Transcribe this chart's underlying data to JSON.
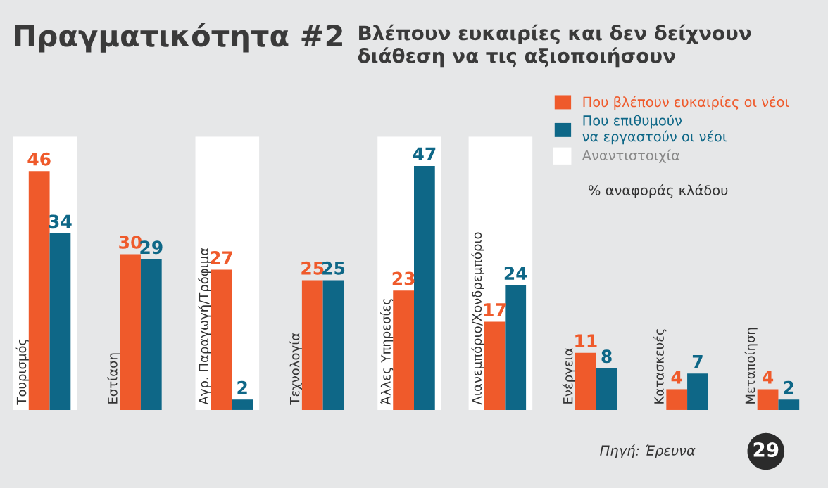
{
  "chart_data": {
    "type": "bar",
    "title": "Πραγματικότητα #2",
    "subtitle": "Βλέπουν ευκαιρίες και δεν δείχνουν διάθεση να τις αξιοποιήσουν",
    "categories": [
      "Τουρισμός",
      "Εστίαση",
      "Αγρ. Παραγωγή/Τρόφιμα",
      "Τεχνολογία",
      "Άλλες Υπηρεσίες",
      "Λιανεμπόριο/Χονδρεμπόριο",
      "Ενέργεια",
      "Κατασκευές",
      "Μεταποίηση"
    ],
    "series": [
      {
        "name": "Που βλέπουν ευκαιρίες οι νέοι",
        "color": "#ef5a2b",
        "values": [
          46,
          30,
          27,
          25,
          23,
          17,
          11,
          4,
          4
        ]
      },
      {
        "name": "Που επιθυμούν\nνα εργαστούν οι νέοι",
        "color": "#0e6787",
        "values": [
          34,
          29,
          2,
          25,
          47,
          24,
          8,
          7,
          2
        ]
      }
    ],
    "bands": [
      {
        "axis": "x",
        "from": "Τουρισμός",
        "to": "Τουρισμός",
        "color": "#ffffff"
      },
      {
        "axis": "x",
        "from": "Αγρ. Παραγωγή/Τρόφιμα",
        "to": "Αγρ. Παραγωγή/Τρόφιμα",
        "color": "#ffffff"
      },
      {
        "axis": "x",
        "from": "Άλλες Υπηρεσίες",
        "to": "Άλλες Υπηρεσίες",
        "color": "#ffffff"
      },
      {
        "axis": "x",
        "from": "Λιανεμπόριο/Χονδρεμπόριο",
        "to": "Λιανεμπόριο/Χονδρεμπόριο",
        "color": "#ffffff"
      }
    ],
    "annotations": [
      "Αναντιστοιχία",
      "% αναφοράς κλάδου",
      "Πηγή: Έρευνα",
      "29"
    ],
    "data_labels": true,
    "legend": "top right"
  }
}
